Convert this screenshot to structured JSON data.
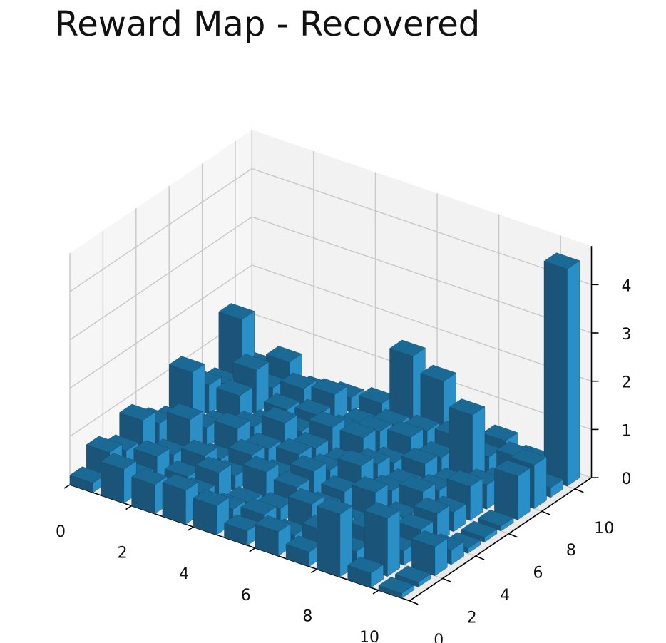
{
  "chart_data": {
    "type": "bar3d",
    "title": "Reward Map - Recovered",
    "xlabel": "",
    "ylabel": "",
    "zlabel": "",
    "xlim": [
      0,
      11
    ],
    "ylim": [
      0,
      11
    ],
    "zlim": [
      0,
      4.5
    ],
    "x_ticks": [
      0,
      2,
      4,
      6,
      8,
      10
    ],
    "y_ticks": [
      0,
      2,
      4,
      6,
      8,
      10
    ],
    "z_ticks": [
      0,
      1,
      2,
      3,
      4
    ],
    "grid": true,
    "bar_color": "#1f77b4",
    "grid_x": [
      0,
      1,
      2,
      3,
      4,
      5,
      6,
      7,
      8,
      9,
      10
    ],
    "grid_y": [
      0,
      1,
      2,
      3,
      4,
      5,
      6,
      7,
      8,
      9,
      10
    ],
    "heights": [
      [
        0.2,
        0.6,
        0.4,
        0.8,
        0.5,
        0.3,
        1.1,
        0.6,
        0.4,
        1.5,
        0.3
      ],
      [
        0.7,
        0.3,
        0.5,
        0.3,
        0.8,
        0.4,
        0.2,
        0.6,
        0.9,
        0.3,
        0.6
      ],
      [
        0.6,
        0.2,
        0.3,
        0.5,
        0.2,
        0.6,
        0.4,
        0.2,
        0.3,
        0.5,
        0.2
      ],
      [
        0.7,
        0.4,
        0.6,
        0.3,
        0.5,
        0.4,
        0.7,
        0.3,
        0.4,
        0.6,
        0.3
      ],
      [
        0.6,
        0.3,
        0.2,
        0.6,
        0.3,
        0.5,
        0.4,
        0.6,
        0.3,
        0.2,
        0.4
      ],
      [
        0.3,
        0.4,
        0.3,
        0.5,
        0.6,
        0.4,
        0.3,
        0.6,
        0.5,
        0.4,
        1.6
      ],
      [
        0.5,
        0.2,
        0.6,
        0.3,
        0.4,
        0.7,
        0.5,
        0.3,
        0.6,
        0.5,
        1.3
      ],
      [
        0.3,
        0.5,
        0.4,
        0.2,
        0.6,
        0.4,
        0.3,
        0.5,
        0.4,
        0.6,
        0.3
      ],
      [
        1.3,
        0.3,
        0.5,
        0.4,
        0.3,
        0.6,
        0.4,
        0.3,
        1.5,
        0.4,
        0.5
      ],
      [
        0.3,
        1.2,
        0.3,
        0.5,
        0.6,
        0.4,
        0.7,
        0.5,
        0.3,
        0.6,
        0.3
      ],
      [
        0.1,
        0.1,
        0.6,
        0.3,
        0.1,
        0.1,
        0.1,
        0.9,
        0.9,
        0.2,
        4.5
      ]
    ]
  }
}
